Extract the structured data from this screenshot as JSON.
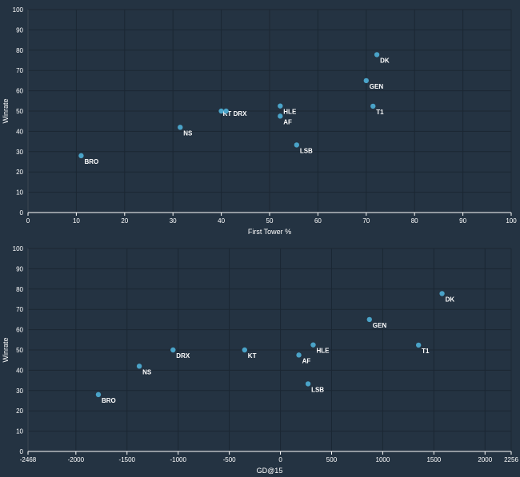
{
  "colors": {
    "background": "#243342",
    "point": "#4aa3c8",
    "text": "#ffffff",
    "grid": "#1b2733"
  },
  "chart_data": [
    {
      "type": "scatter",
      "xlabel": "First Tower %",
      "ylabel": "Winrate",
      "xlim": [
        0,
        100
      ],
      "ylim": [
        0,
        100
      ],
      "xticks": [
        0,
        10,
        20,
        30,
        40,
        50,
        60,
        70,
        80,
        90,
        100
      ],
      "yticks": [
        0,
        10,
        20,
        30,
        40,
        50,
        60,
        70,
        80,
        90,
        100
      ],
      "grid": true,
      "points": [
        {
          "label": "BRO",
          "x": 11,
          "y": 28
        },
        {
          "label": "NS",
          "x": 31.5,
          "y": 42
        },
        {
          "label": "KT",
          "x": 40,
          "y": 50
        },
        {
          "label": "DRX",
          "x": 41,
          "y": 50
        },
        {
          "label": "HLE",
          "x": 52.2,
          "y": 52.5
        },
        {
          "label": "AF",
          "x": 52.2,
          "y": 47.5
        },
        {
          "label": "LSB",
          "x": 55.6,
          "y": 33.3
        },
        {
          "label": "GEN",
          "x": 70,
          "y": 65
        },
        {
          "label": "T1",
          "x": 71.4,
          "y": 52.4
        },
        {
          "label": "DK",
          "x": 72.2,
          "y": 77.8
        }
      ]
    },
    {
      "type": "scatter",
      "xlabel": "GD@15",
      "ylabel": "Winrate",
      "xlim": [
        -2468,
        2256
      ],
      "ylim": [
        0,
        100
      ],
      "xticks": [
        -2468,
        -2000,
        -1500,
        -1000,
        -500,
        0,
        500,
        1000,
        1500,
        2000,
        2256
      ],
      "yticks": [
        0,
        10,
        20,
        30,
        40,
        50,
        60,
        70,
        80,
        90,
        100
      ],
      "grid": true,
      "points": [
        {
          "label": "BRO",
          "x": -1780,
          "y": 28
        },
        {
          "label": "NS",
          "x": -1380,
          "y": 42
        },
        {
          "label": "DRX",
          "x": -1050,
          "y": 50
        },
        {
          "label": "KT",
          "x": -350,
          "y": 50
        },
        {
          "label": "AF",
          "x": 180,
          "y": 47.5
        },
        {
          "label": "HLE",
          "x": 320,
          "y": 52.5
        },
        {
          "label": "LSB",
          "x": 270,
          "y": 33.3
        },
        {
          "label": "GEN",
          "x": 870,
          "y": 65
        },
        {
          "label": "T1",
          "x": 1350,
          "y": 52.4
        },
        {
          "label": "DK",
          "x": 1580,
          "y": 77.8
        }
      ]
    }
  ]
}
